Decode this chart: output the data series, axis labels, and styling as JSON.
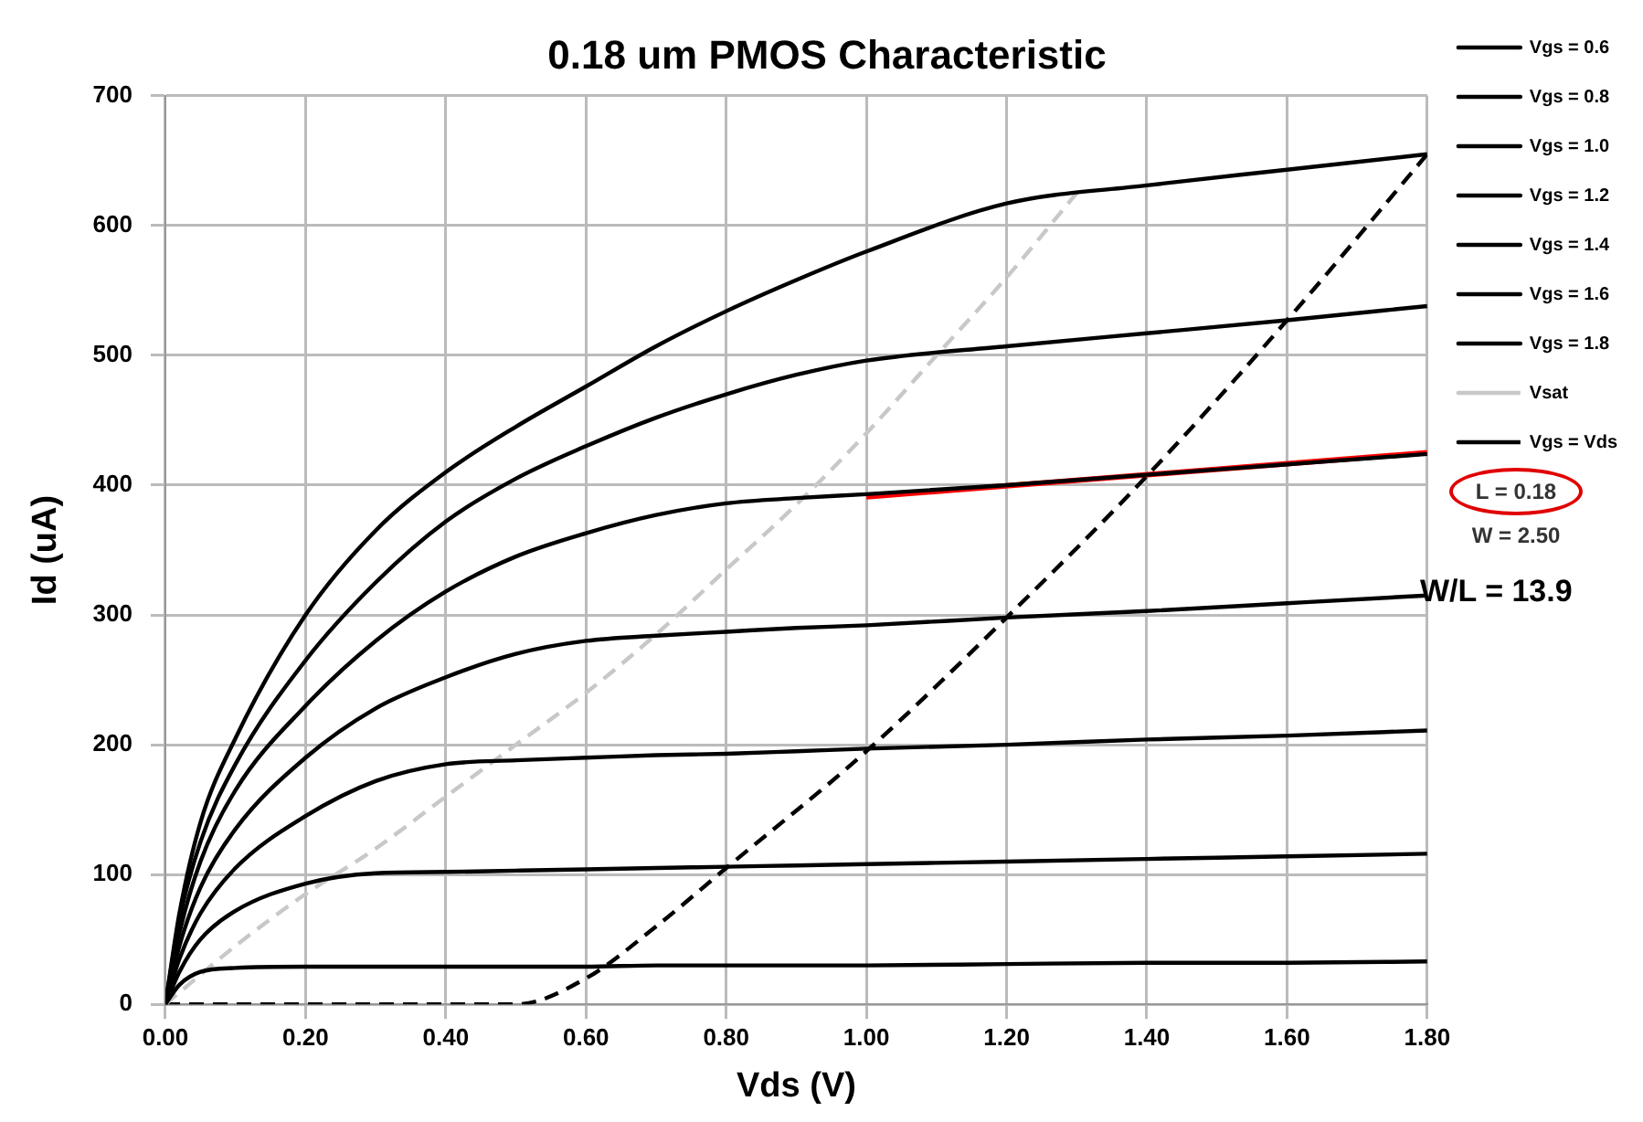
{
  "chart_data": {
    "type": "line",
    "title": "0.18 um PMOS Characteristic",
    "xlabel": "Vds (V)",
    "ylabel": "Id (uA)",
    "xlim": [
      0,
      1.8
    ],
    "xticks": [
      {
        "value": 0,
        "label": "0.00"
      },
      {
        "value": 0.2,
        "label": "0.20"
      },
      {
        "value": 0.4,
        "label": "0.40"
      },
      {
        "value": 0.6,
        "label": "0.60"
      },
      {
        "value": 0.8,
        "label": "0.80"
      },
      {
        "value": 1,
        "label": "1.00"
      },
      {
        "value": 1.2,
        "label": "1.20"
      },
      {
        "value": 1.4,
        "label": "1.40"
      },
      {
        "value": 1.6,
        "label": "1.60"
      },
      {
        "value": 1.8,
        "label": "1.80"
      }
    ],
    "ylim": [
      0,
      700
    ],
    "yticks": [
      0,
      100,
      200,
      300,
      400,
      500,
      600,
      700
    ],
    "grid": true,
    "legend": "right",
    "marker": "none",
    "x": [
      0,
      0.02,
      0.05,
      0.1,
      0.2,
      0.3,
      0.4,
      0.5,
      0.6,
      0.7,
      0.8,
      0.9,
      1.0,
      1.2,
      1.4,
      1.6,
      1.8
    ],
    "series": [
      {
        "name": "Vgs = 0.6",
        "color": "#000000",
        "line_style": "solid",
        "values": [
          0,
          15,
          25,
          28,
          29,
          29,
          29,
          29,
          29,
          30,
          30,
          30,
          30,
          31,
          32,
          32,
          33
        ]
      },
      {
        "name": "Vgs = 0.8",
        "color": "#000000",
        "line_style": "solid",
        "values": [
          0,
          25,
          50,
          72,
          93,
          101,
          102,
          103,
          104,
          105,
          106,
          107,
          108,
          110,
          112,
          114,
          116
        ]
      },
      {
        "name": "Vgs = 1.0",
        "color": "#000000",
        "line_style": "solid",
        "values": [
          0,
          35,
          70,
          105,
          145,
          172,
          185,
          188,
          190,
          192,
          193,
          195,
          197,
          200,
          204,
          207,
          211
        ]
      },
      {
        "name": "Vgs = 1.2",
        "color": "#000000",
        "line_style": "solid",
        "values": [
          0,
          45,
          90,
          135,
          190,
          228,
          252,
          270,
          280,
          284,
          287,
          290,
          292,
          298,
          303,
          309,
          315
        ]
      },
      {
        "name": "Vgs = 1.4",
        "color": "#000000",
        "line_style": "solid",
        "values": [
          0,
          55,
          110,
          165,
          230,
          280,
          318,
          345,
          363,
          377,
          386,
          390,
          393,
          400,
          408,
          416,
          424
        ]
      },
      {
        "name": "Vgs = 1.6",
        "color": "#000000",
        "line_style": "solid",
        "values": [
          0,
          65,
          125,
          185,
          265,
          325,
          372,
          405,
          430,
          452,
          470,
          485,
          496,
          507,
          517,
          527,
          538
        ]
      },
      {
        "name": "Vgs = 1.8",
        "color": "#000000",
        "line_style": "solid",
        "values": [
          0,
          70,
          140,
          205,
          300,
          365,
          410,
          445,
          476,
          507,
          534,
          558,
          580,
          617,
          631,
          643,
          655
        ]
      },
      {
        "name": "Vsat",
        "color": "#c8c8c8",
        "line_style": "dashed",
        "x": [
          0,
          0.1,
          0.2,
          0.3,
          0.4,
          0.5,
          0.6,
          0.7,
          0.8,
          0.9,
          1.0,
          1.1,
          1.2,
          1.3
        ],
        "values": [
          0,
          45,
          85,
          120,
          160,
          200,
          240,
          285,
          335,
          385,
          440,
          500,
          560,
          625
        ]
      },
      {
        "name": "Vgs = Vds",
        "color": "#000000",
        "line_style": "dashed",
        "x": [
          0,
          0.5,
          0.6,
          0.7,
          0.8,
          1.0,
          1.2,
          1.4,
          1.6,
          1.8
        ],
        "values": [
          0,
          0,
          20,
          60,
          105,
          195,
          298,
          407,
          527,
          655
        ]
      },
      {
        "color": "#ff0000",
        "line_style": "solid",
        "x": [
          1.0,
          1.8
        ],
        "values": [
          391,
          425
        ]
      }
    ],
    "annotations": [
      "L = 0.18",
      "W = 2.50",
      "W/L = 13.9"
    ]
  }
}
